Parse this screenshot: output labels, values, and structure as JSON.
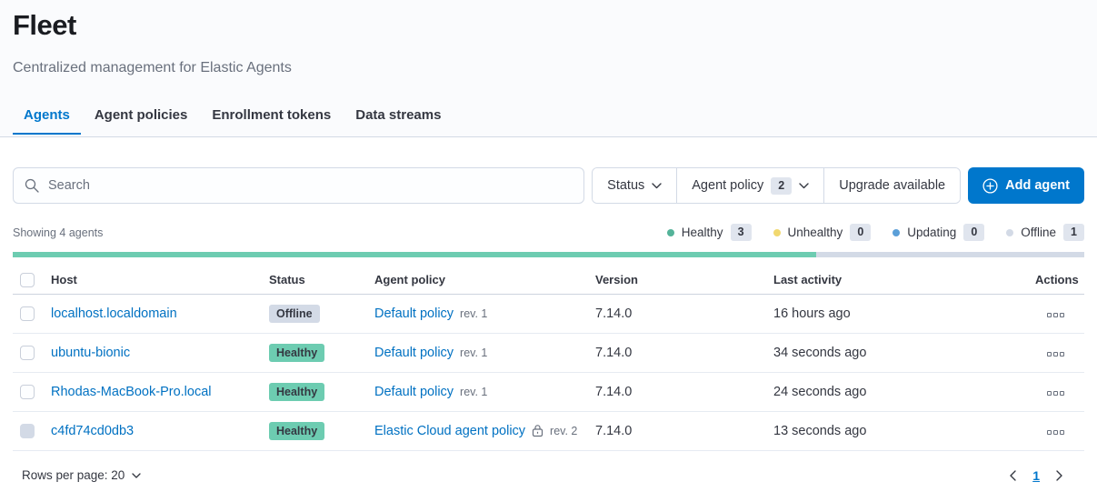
{
  "page": {
    "title": "Fleet",
    "subtitle": "Centralized management for Elastic Agents"
  },
  "tabs": [
    {
      "label": "Agents",
      "active": true
    },
    {
      "label": "Agent policies",
      "active": false
    },
    {
      "label": "Enrollment tokens",
      "active": false
    },
    {
      "label": "Data streams",
      "active": false
    }
  ],
  "toolbar": {
    "search_placeholder": "Search",
    "filters": [
      {
        "label": "Status",
        "chevron": true
      },
      {
        "label": "Agent policy",
        "badge": "2",
        "chevron": true
      },
      {
        "label": "Upgrade available",
        "chevron": false
      }
    ],
    "add_agent_label": "Add agent"
  },
  "summary": {
    "showing_text": "Showing 4 agents",
    "legend": [
      {
        "label": "Healthy",
        "count": "3",
        "color": "#54B399"
      },
      {
        "label": "Unhealthy",
        "count": "0",
        "color": "#F1D86F"
      },
      {
        "label": "Updating",
        "count": "0",
        "color": "#5B9FD8"
      },
      {
        "label": "Offline",
        "count": "1",
        "color": "#D3DAE6"
      }
    ],
    "health_bar": {
      "segments": [
        {
          "label": "healthy",
          "pct": 75,
          "color": "#6DCCB1"
        },
        {
          "label": "offline",
          "pct": 25,
          "color": "#D3DAE6"
        }
      ]
    }
  },
  "table": {
    "columns": {
      "host": "Host",
      "status": "Status",
      "policy": "Agent policy",
      "version": "Version",
      "last_activity": "Last activity",
      "actions": "Actions"
    },
    "rows": [
      {
        "host": "localhost.localdomain",
        "status": "Offline",
        "status_type": "offline",
        "policy": "Default policy",
        "revision": "rev. 1",
        "locked": false,
        "version": "7.14.0",
        "last_activity": "16 hours ago",
        "selectable": true
      },
      {
        "host": "ubuntu-bionic",
        "status": "Healthy",
        "status_type": "healthy",
        "policy": "Default policy",
        "revision": "rev. 1",
        "locked": false,
        "version": "7.14.0",
        "last_activity": "34 seconds ago",
        "selectable": true
      },
      {
        "host": "Rhodas-MacBook-Pro.local",
        "status": "Healthy",
        "status_type": "healthy",
        "policy": "Default policy",
        "revision": "rev. 1",
        "locked": false,
        "version": "7.14.0",
        "last_activity": "24 seconds ago",
        "selectable": true
      },
      {
        "host": "c4fd74cd0db3",
        "status": "Healthy",
        "status_type": "healthy",
        "policy": "Elastic Cloud agent policy",
        "revision": "rev. 2",
        "locked": true,
        "version": "7.14.0",
        "last_activity": "13 seconds ago",
        "selectable": false
      }
    ]
  },
  "footer": {
    "rows_per_page_label": "Rows per page: 20",
    "current_page": "1"
  },
  "colors": {
    "accent_blue": "#0077CC",
    "link_blue": "#0071C2",
    "healthy_green": "#6DCCB1",
    "unhealthy_yellow": "#F1D86F",
    "updating_blue": "#5B9FD8",
    "offline_gray": "#D3DAE6",
    "header_background": "#FAFBFD"
  }
}
